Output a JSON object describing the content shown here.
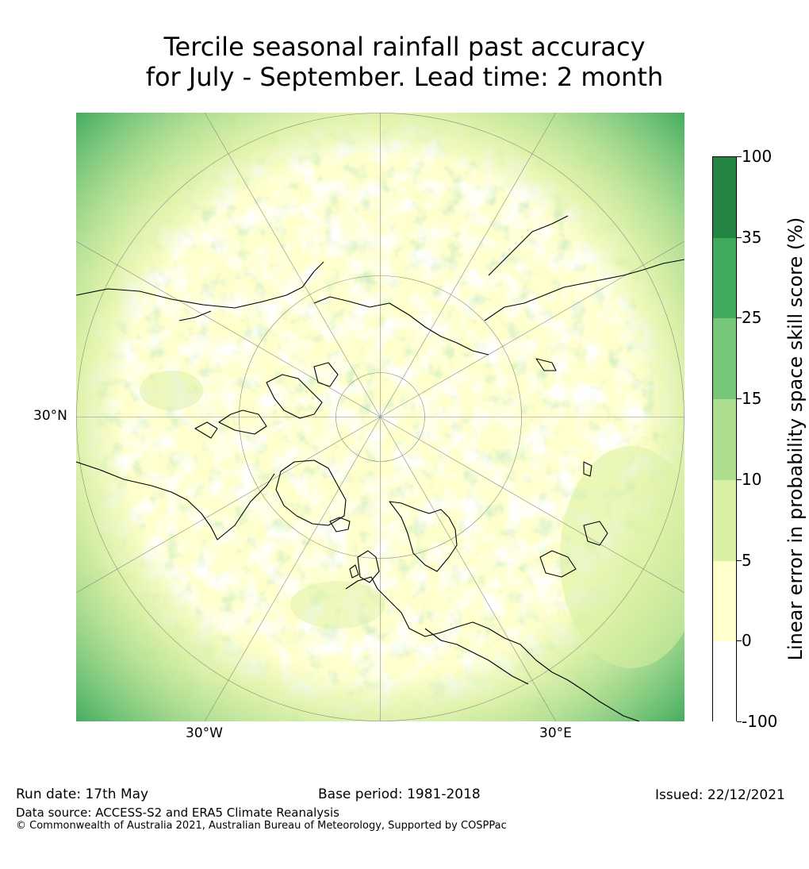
{
  "title": {
    "line1": "Tercile seasonal rainfall past accuracy",
    "line2": "for July - September. Lead time: 2 month"
  },
  "map": {
    "projection": "north-polar-stereographic",
    "lat_label": "30°N",
    "lon_labels": [
      "30°W",
      "30°E"
    ]
  },
  "colorbar": {
    "title": "Linear error in probability space skill score (%)",
    "levels": [
      "100",
      "35",
      "25",
      "15",
      "10",
      "5",
      "0",
      "-100"
    ],
    "colors": [
      "#238443",
      "#41ab5d",
      "#78c679",
      "#addd8e",
      "#d9f0a3",
      "#ffffcc",
      "#ffffff"
    ]
  },
  "footer": {
    "run_date": "Run date: 17th May",
    "base_period": "Base period: 1981-2018",
    "issued": "Issued: 22/12/2021",
    "data_source": "Data source: ACCESS-S2 and ERA5 Climate Reanalysis",
    "copyright": "© Commonwealth of Australia 2021, Australian Bureau of Meteorology, Supported by COSPPac"
  }
}
